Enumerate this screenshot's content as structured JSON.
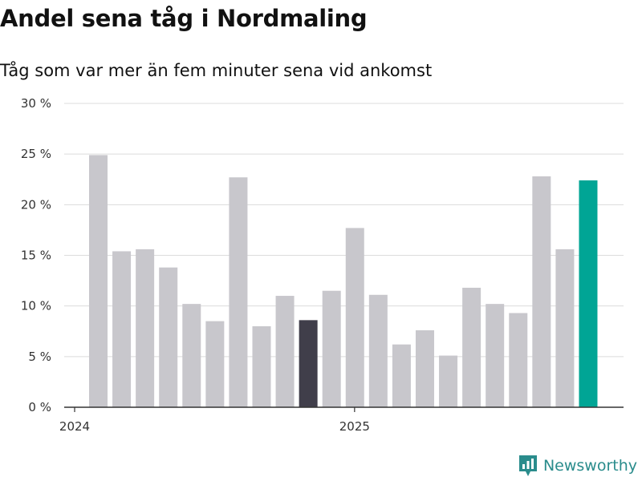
{
  "title": "Andel sena tåg i Nordmaling",
  "subtitle": "Tåg som var mer än fem minuter sena vid ankomst",
  "brand": "Newsworthy",
  "colors": {
    "bar": "#c8c7cc",
    "highlight_dark": "#403e4a",
    "highlight_teal": "#00a595",
    "grid": "#dcdcdc",
    "axis": "#333333",
    "brand": "#2a8c8c"
  },
  "chart_data": {
    "type": "bar",
    "unit": "%",
    "ylim": [
      0,
      30
    ],
    "yticks": [
      0,
      5,
      10,
      15,
      20,
      25,
      30
    ],
    "ytick_labels": [
      "0 %",
      "5 %",
      "10 %",
      "15 %",
      "20 %",
      "25 %",
      "30 %"
    ],
    "xtick_labels": [
      {
        "label": "2024",
        "index": 0
      },
      {
        "label": "2025",
        "index": 12
      }
    ],
    "categories": [
      "2024-01",
      "2024-02",
      "2024-03",
      "2024-04",
      "2024-05",
      "2024-06",
      "2024-07",
      "2024-08",
      "2024-09",
      "2024-10",
      "2024-11",
      "2024-12",
      "2025-01",
      "2025-02",
      "2025-03",
      "2025-04",
      "2025-05",
      "2025-06",
      "2025-07",
      "2025-08",
      "2025-09",
      "2025-10",
      "2025-11"
    ],
    "values": [
      24.9,
      15.4,
      15.6,
      13.8,
      10.2,
      8.5,
      22.7,
      8.0,
      11.0,
      8.6,
      11.5,
      17.7,
      11.1,
      6.2,
      7.6,
      5.1,
      11.8,
      10.2,
      9.3,
      22.8,
      15.6,
      22.4,
      null
    ],
    "highlights": {
      "9": "dark",
      "21": "teal"
    }
  }
}
